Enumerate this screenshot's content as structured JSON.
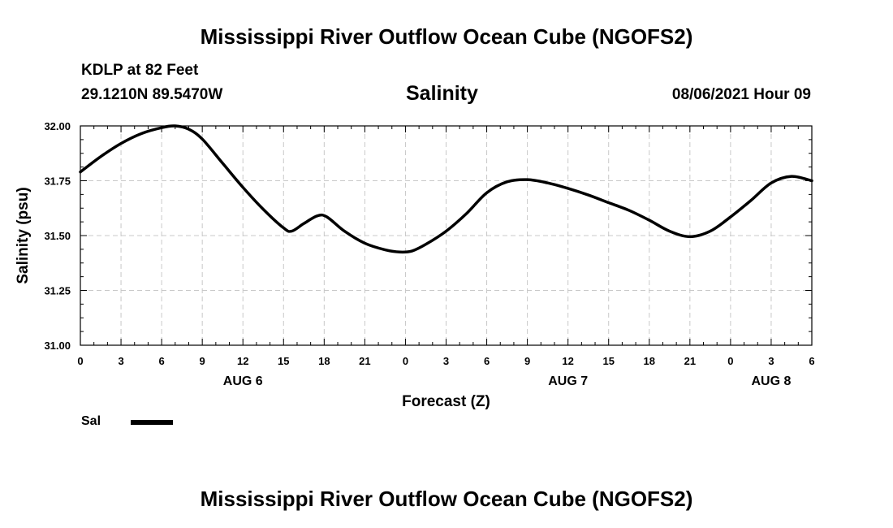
{
  "page": {
    "title_top": "Mississippi River Outflow Ocean Cube (NGOFS2)",
    "title_bottom": "Mississippi River Outflow Ocean Cube (NGOFS2)",
    "station": "KDLP at 82 Feet",
    "coords": "29.1210N  89.5470W",
    "parameter": "Salinity",
    "datetime": "08/06/2021 Hour 09",
    "legend_label": "Sal"
  },
  "chart_data": {
    "type": "line",
    "title": "Salinity",
    "xlabel": "Forecast (Z)",
    "ylabel": "Salinity (psu)",
    "ylim": [
      31.0,
      32.0
    ],
    "yticks": [
      31.0,
      31.25,
      31.5,
      31.75,
      32.0
    ],
    "ytick_labels": [
      "31.00",
      "31.25",
      "31.50",
      "31.75",
      "32.00"
    ],
    "xlim": [
      0,
      54
    ],
    "xtick_hours": [
      0,
      3,
      6,
      9,
      12,
      15,
      18,
      21,
      24,
      27,
      30,
      33,
      36,
      39,
      42,
      45,
      48,
      51,
      54
    ],
    "xtick_labels": [
      "0",
      "3",
      "6",
      "9",
      "12",
      "15",
      "18",
      "21",
      "0",
      "3",
      "6",
      "9",
      "12",
      "15",
      "18",
      "21",
      "0",
      "3",
      "6"
    ],
    "day_labels": [
      {
        "hour": 12,
        "label": "AUG 6"
      },
      {
        "hour": 36,
        "label": "AUG 7"
      },
      {
        "hour": 51,
        "label": "AUG 8"
      }
    ],
    "grid": true,
    "series": [
      {
        "name": "Sal",
        "color": "#000000",
        "x": [
          0,
          1.5,
          3,
          4.5,
          6,
          7,
          8,
          9,
          10.5,
          12,
          13.5,
          15,
          15.6,
          16.5,
          17.5,
          18.2,
          19.5,
          21,
          22.5,
          23.6,
          24.5,
          25.5,
          27,
          28.5,
          30,
          31.5,
          33,
          34.5,
          36,
          37.5,
          39,
          40.5,
          42,
          43.5,
          45,
          46.5,
          48,
          49.5,
          51,
          52.5,
          54
        ],
        "values": [
          31.79,
          31.86,
          31.92,
          31.965,
          31.992,
          32.0,
          31.985,
          31.94,
          31.83,
          31.72,
          31.62,
          31.535,
          31.52,
          31.555,
          31.59,
          31.585,
          31.52,
          31.465,
          31.435,
          31.425,
          31.43,
          31.46,
          31.52,
          31.6,
          31.695,
          31.745,
          31.755,
          31.74,
          31.715,
          31.685,
          31.65,
          31.615,
          31.57,
          31.52,
          31.495,
          31.52,
          31.585,
          31.66,
          31.74,
          31.77,
          31.75
        ]
      }
    ]
  }
}
